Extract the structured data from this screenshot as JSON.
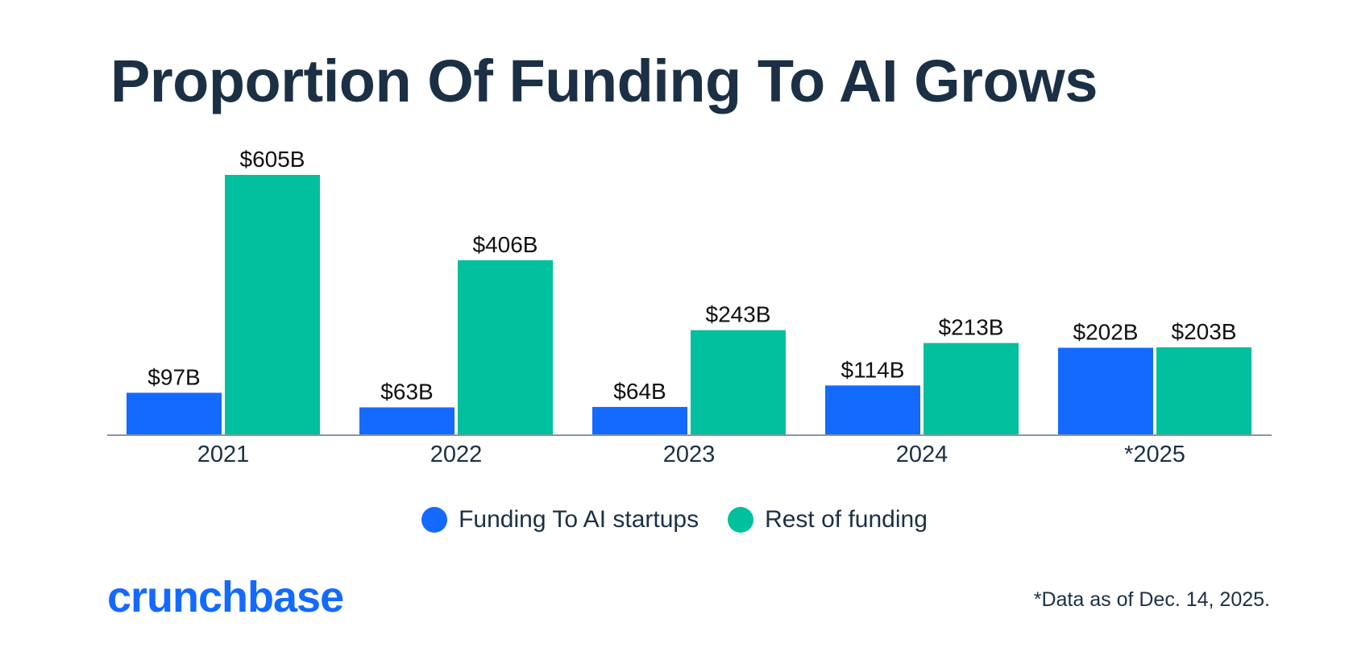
{
  "chart_data": {
    "type": "bar",
    "title": "Proportion Of Funding To AI Grows",
    "categories": [
      "2021",
      "2022",
      "2023",
      "2024",
      "*2025"
    ],
    "series": [
      {
        "name": "Funding To AI startups",
        "color": "#146aff",
        "values": [
          97,
          63,
          64,
          114,
          202
        ],
        "labels": [
          "$97B",
          "$63B",
          "$64B",
          "$114B",
          "$202B"
        ]
      },
      {
        "name": "Rest of funding",
        "color": "#00c09d",
        "values": [
          605,
          406,
          243,
          213,
          203
        ],
        "labels": [
          "$605B",
          "$406B",
          "$243B",
          "$213B",
          "$203B"
        ]
      }
    ],
    "xlabel": "",
    "ylabel": "",
    "ylim": [
      0,
      605
    ],
    "grid": false,
    "legend": "bottom-center"
  },
  "logo_text": "crunchbase",
  "footnote": "*Data as of Dec. 14, 2025."
}
